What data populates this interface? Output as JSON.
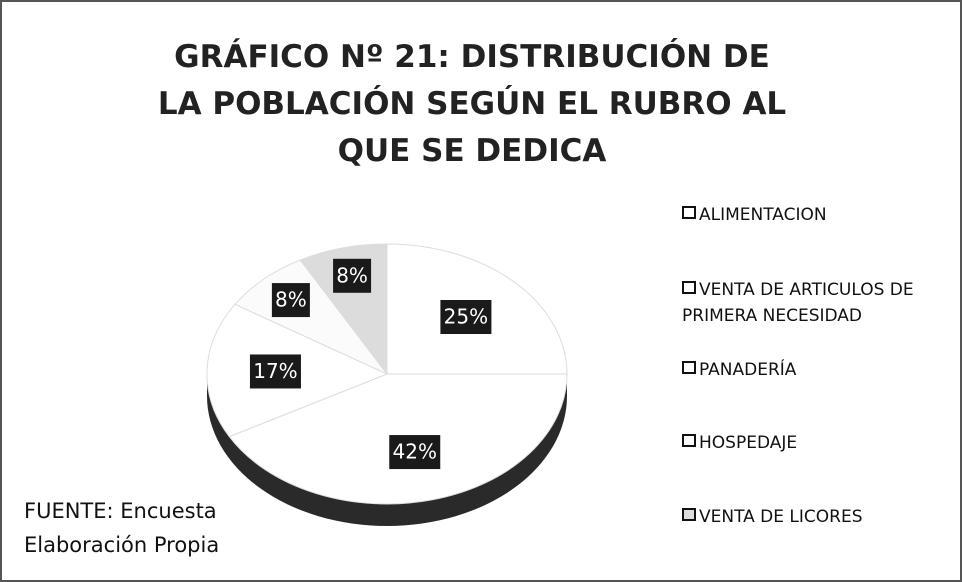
{
  "chart_data": {
    "type": "pie",
    "title": "GRÁFICO Nº 21: DISTRIBUCIÓN DE LA POBLACIÓN SEGÚN EL RUBRO AL QUE SE DEDICA",
    "categories": [
      "ALIMENTACION",
      "VENTA DE ARTICULOS DE PRIMERA NECESIDAD",
      "PANADERÍA",
      "HOSPEDAJE",
      "VENTA DE LICORES"
    ],
    "values": [
      25,
      42,
      17,
      8,
      8
    ],
    "value_labels": [
      "25%",
      "42%",
      "17%",
      "8%",
      "8%"
    ],
    "colors": [
      "#ffffff",
      "#ffffff",
      "#ffffff",
      "#fbfbfb",
      "#dcdcdc"
    ],
    "legend": "right",
    "source": [
      "FUENTE: Encuesta",
      "Elaboración Propia"
    ]
  }
}
